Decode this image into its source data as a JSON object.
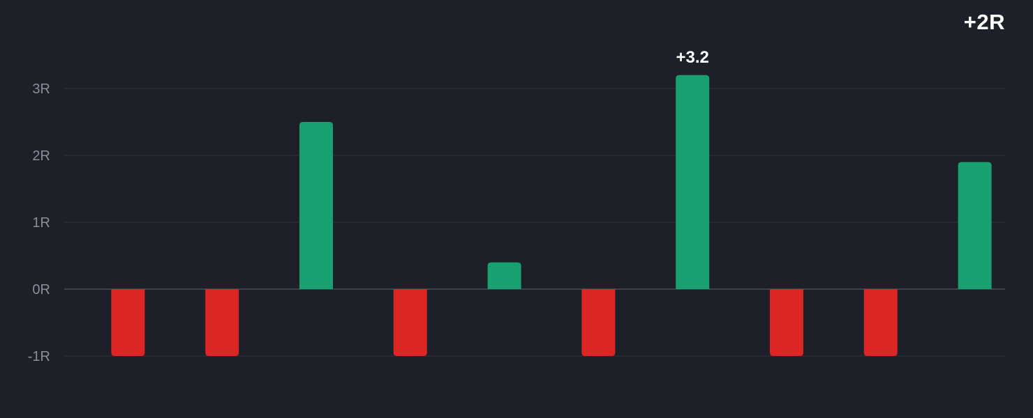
{
  "header": {
    "total": "+2R"
  },
  "chart_data": {
    "type": "bar",
    "title": "",
    "xlabel": "",
    "ylabel": "",
    "ylim": [
      -1,
      3
    ],
    "yticks": [
      -1,
      0,
      1,
      2,
      3
    ],
    "ytick_labels": [
      "-1R",
      "0R",
      "1R",
      "2R",
      "3R"
    ],
    "grid": true,
    "values": [
      -1,
      -1,
      2.5,
      -1,
      0.4,
      -1,
      3.2,
      -1,
      -1,
      1.9
    ],
    "annotations": [
      {
        "index": 6,
        "text": "+3.2"
      }
    ],
    "colors": {
      "positive": "#18a070",
      "negative": "#dc2626",
      "grid": "#2b2e37",
      "zero_line": "#3e414c",
      "tick_text": "#8b8f99",
      "label_text": "#ffffff"
    }
  }
}
